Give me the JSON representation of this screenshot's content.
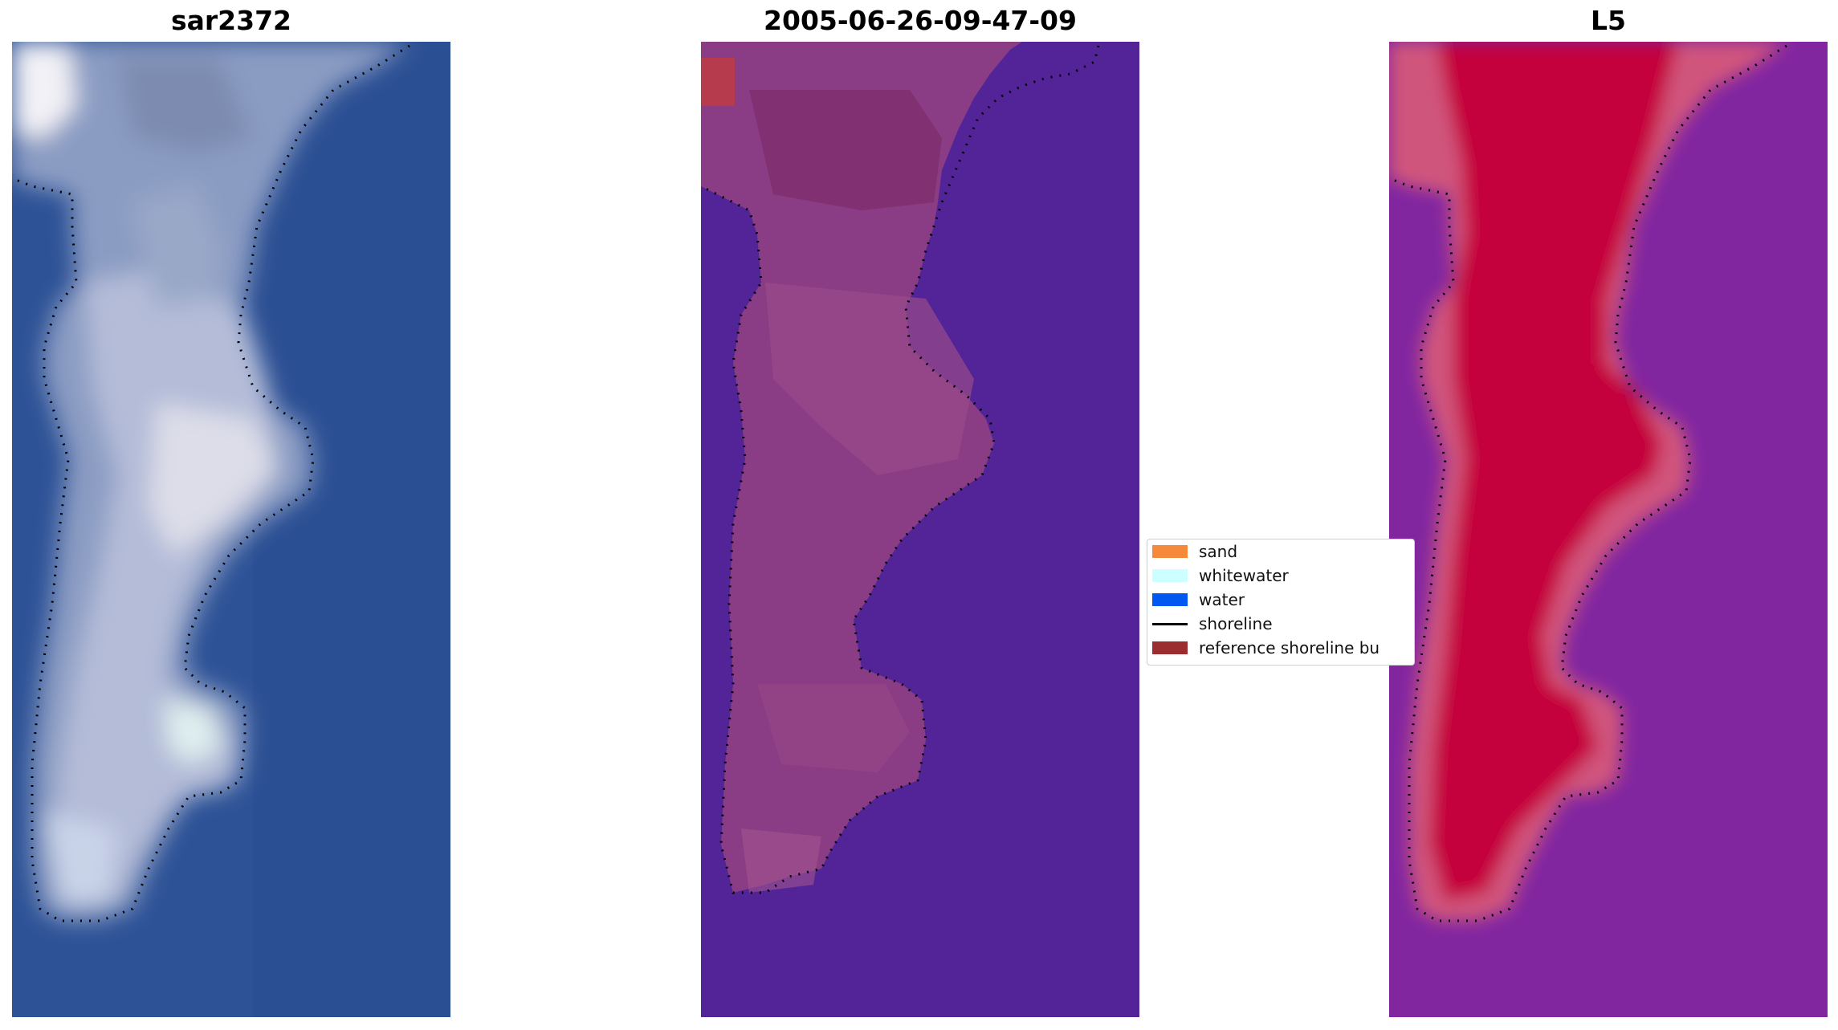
{
  "panels": [
    {
      "title": "sar2372",
      "style": "rgb"
    },
    {
      "title": "2005-06-26-09-47-09",
      "style": "classified"
    },
    {
      "title": "L5",
      "style": "index"
    }
  ],
  "legend": {
    "items": [
      {
        "label": "sand",
        "color": "#f58a3a",
        "kind": "patch"
      },
      {
        "label": "whitewater",
        "color": "#ccffff",
        "kind": "patch"
      },
      {
        "label": "water",
        "color": "#0057f2",
        "kind": "patch"
      },
      {
        "label": "shoreline",
        "color": "#000000",
        "kind": "line"
      },
      {
        "label": "reference shoreline bu",
        "color": "#9b2d30",
        "kind": "patch"
      }
    ]
  },
  "colors": {
    "panel1_water": "#2d5296",
    "panel1_land": "#c6cce0",
    "panel2_background": "#522497",
    "panel2_land": "#8a3d84",
    "panel3_background": "#8226a0",
    "panel3_land": "#c4043c"
  }
}
